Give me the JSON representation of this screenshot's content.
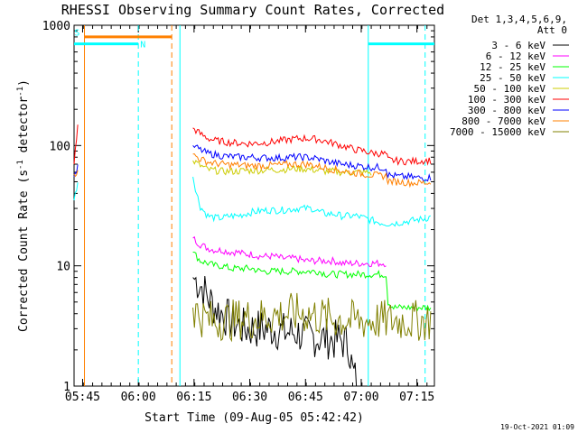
{
  "chart_data": {
    "type": "line",
    "title": "RHESSI Observing Summary Count Rates, Corrected",
    "xlabel": "Start Time (09-Aug-05 05:42:42)",
    "ylabel": "Corrected Count Rate (s⁻¹ detector⁻¹)",
    "ylabel_parts": {
      "base": "Corrected Count Rate (s",
      "exp1": "-1",
      "mid": " detector",
      "exp2": "-1",
      "close": ")"
    },
    "yscale": "log",
    "ylim": [
      1,
      1000
    ],
    "ytick_values": [
      1,
      10,
      100,
      1000
    ],
    "ytick_labels": [
      "1",
      "10",
      "100",
      "1000"
    ],
    "xlim_minutes_after_start": [
      0,
      97
    ],
    "xtick_labels": [
      "05:45",
      "06:00",
      "06:15",
      "06:30",
      "06:45",
      "07:00",
      "07:15"
    ],
    "xtick_minutes": [
      2.3,
      17.3,
      32.3,
      47.3,
      62.3,
      77.3,
      92.3
    ],
    "legend_header": [
      "Det 1,3,4,5,6,9,",
      "Att 0"
    ],
    "legend_position": "right",
    "series": [
      {
        "name": "3 - 6 keV",
        "color": "#000000",
        "points": [
          [
            32,
            8
          ],
          [
            34,
            7
          ],
          [
            36,
            5.5
          ],
          [
            38,
            4.5
          ],
          [
            40,
            4
          ],
          [
            42,
            3.5
          ],
          [
            44,
            3.2
          ],
          [
            46,
            3
          ],
          [
            48,
            3
          ],
          [
            50,
            3
          ],
          [
            52,
            3
          ],
          [
            54,
            3
          ],
          [
            56,
            2.8
          ],
          [
            58,
            2.8
          ],
          [
            60,
            2.8
          ],
          [
            62,
            2.6
          ],
          [
            64,
            2.6
          ],
          [
            66,
            2.5
          ],
          [
            68,
            2.5
          ],
          [
            70,
            2.4
          ],
          [
            72,
            2.4
          ],
          [
            74,
            2.2
          ],
          [
            75,
            1.3
          ],
          [
            76,
            1.1
          ]
        ]
      },
      {
        "name": "6 - 12 keV",
        "color": "#ff00ff",
        "points": [
          [
            32,
            17
          ],
          [
            34,
            15
          ],
          [
            36,
            14
          ],
          [
            38,
            13.5
          ],
          [
            40,
            13.5
          ],
          [
            42,
            13
          ],
          [
            44,
            13
          ],
          [
            46,
            12.5
          ],
          [
            48,
            12.5
          ],
          [
            50,
            12
          ],
          [
            52,
            12
          ],
          [
            54,
            12
          ],
          [
            56,
            11.5
          ],
          [
            58,
            11.5
          ],
          [
            60,
            11.5
          ],
          [
            62,
            11
          ],
          [
            64,
            11
          ],
          [
            66,
            11
          ],
          [
            68,
            11
          ],
          [
            70,
            11
          ],
          [
            72,
            10.5
          ],
          [
            74,
            10.5
          ],
          [
            76,
            10.5
          ],
          [
            78,
            10.5
          ],
          [
            80,
            10.5
          ],
          [
            82,
            10.5
          ],
          [
            84,
            10.5
          ]
        ]
      },
      {
        "name": "12 - 25 keV",
        "color": "#00ff00",
        "points": [
          [
            32,
            13
          ],
          [
            34,
            11
          ],
          [
            36,
            10.5
          ],
          [
            38,
            10
          ],
          [
            40,
            10
          ],
          [
            42,
            9.5
          ],
          [
            44,
            9.5
          ],
          [
            46,
            9.5
          ],
          [
            48,
            9.5
          ],
          [
            50,
            9
          ],
          [
            52,
            9
          ],
          [
            54,
            9
          ],
          [
            56,
            9
          ],
          [
            58,
            9
          ],
          [
            60,
            9
          ],
          [
            62,
            9
          ],
          [
            64,
            9
          ],
          [
            66,
            9
          ],
          [
            68,
            8.5
          ],
          [
            70,
            8.5
          ],
          [
            72,
            8.5
          ],
          [
            74,
            8.5
          ],
          [
            76,
            8.5
          ],
          [
            78,
            8.5
          ],
          [
            80,
            8.5
          ],
          [
            82,
            8.5
          ],
          [
            84,
            8.5
          ],
          [
            84.5,
            5
          ],
          [
            86,
            4.5
          ],
          [
            88,
            4.5
          ],
          [
            90,
            4.5
          ],
          [
            92,
            4.5
          ],
          [
            94,
            4.5
          ],
          [
            96,
            4.5
          ]
        ]
      },
      {
        "name": "25 - 50 keV",
        "color": "#00ffff",
        "points": [
          [
            0,
            35
          ],
          [
            1,
            50
          ],
          [
            32,
            55
          ],
          [
            33,
            40
          ],
          [
            34,
            31
          ],
          [
            36,
            26
          ],
          [
            38,
            25
          ],
          [
            40,
            25
          ],
          [
            42,
            26
          ],
          [
            44,
            26
          ],
          [
            46,
            27
          ],
          [
            48,
            28
          ],
          [
            50,
            28.5
          ],
          [
            52,
            29
          ],
          [
            54,
            29
          ],
          [
            56,
            29
          ],
          [
            58,
            29.5
          ],
          [
            60,
            30
          ],
          [
            62,
            30
          ],
          [
            64,
            30
          ],
          [
            66,
            28
          ],
          [
            68,
            27
          ],
          [
            70,
            27
          ],
          [
            72,
            26
          ],
          [
            74,
            26
          ],
          [
            76,
            26
          ],
          [
            78,
            25
          ],
          [
            80,
            24
          ],
          [
            82,
            23
          ],
          [
            84,
            22.5
          ],
          [
            86,
            22.5
          ],
          [
            88,
            23
          ],
          [
            90,
            23.5
          ],
          [
            92,
            24
          ],
          [
            94,
            24.5
          ],
          [
            96,
            25.5
          ]
        ]
      },
      {
        "name": "50 - 100 keV",
        "color": "#cccc00",
        "points": [
          [
            32,
            75
          ],
          [
            34,
            68
          ],
          [
            36,
            63
          ],
          [
            38,
            62
          ],
          [
            40,
            61
          ],
          [
            42,
            61
          ],
          [
            44,
            61
          ],
          [
            46,
            62
          ],
          [
            48,
            62
          ],
          [
            50,
            62
          ],
          [
            52,
            63
          ],
          [
            54,
            63
          ],
          [
            56,
            63
          ],
          [
            58,
            64
          ],
          [
            60,
            64
          ],
          [
            62,
            64
          ],
          [
            64,
            63
          ],
          [
            66,
            62
          ],
          [
            68,
            61
          ],
          [
            70,
            61
          ],
          [
            72,
            60
          ],
          [
            74,
            60
          ],
          [
            76,
            60
          ],
          [
            78,
            60
          ],
          [
            80,
            59
          ]
        ]
      },
      {
        "name": "100 - 300 keV",
        "color": "#ff0000",
        "points": [
          [
            0,
            70
          ],
          [
            1,
            145
          ],
          [
            32,
            140
          ],
          [
            34,
            125
          ],
          [
            36,
            115
          ],
          [
            38,
            110
          ],
          [
            40,
            108
          ],
          [
            42,
            106
          ],
          [
            44,
            105
          ],
          [
            46,
            104
          ],
          [
            48,
            104
          ],
          [
            50,
            105
          ],
          [
            52,
            106
          ],
          [
            54,
            108
          ],
          [
            56,
            110
          ],
          [
            58,
            112
          ],
          [
            60,
            114
          ],
          [
            62,
            115
          ],
          [
            64,
            114
          ],
          [
            66,
            112
          ],
          [
            68,
            108
          ],
          [
            70,
            104
          ],
          [
            72,
            100
          ],
          [
            74,
            96
          ],
          [
            76,
            92
          ],
          [
            78,
            90
          ],
          [
            80,
            87
          ],
          [
            82,
            86
          ],
          [
            84,
            85
          ],
          [
            84.5,
            76
          ],
          [
            86,
            75
          ],
          [
            88,
            74
          ],
          [
            90,
            74
          ],
          [
            92,
            74
          ],
          [
            94,
            75
          ],
          [
            96,
            75
          ]
        ]
      },
      {
        "name": "300 - 800 keV",
        "color": "#0000ff",
        "points": [
          [
            0,
            55
          ],
          [
            1,
            65
          ],
          [
            32,
            100
          ],
          [
            34,
            92
          ],
          [
            36,
            86
          ],
          [
            38,
            84
          ],
          [
            40,
            82
          ],
          [
            42,
            81
          ],
          [
            44,
            80
          ],
          [
            46,
            80
          ],
          [
            48,
            80
          ],
          [
            50,
            79
          ],
          [
            52,
            79
          ],
          [
            54,
            79
          ],
          [
            56,
            79
          ],
          [
            58,
            80
          ],
          [
            60,
            80
          ],
          [
            62,
            80
          ],
          [
            64,
            79
          ],
          [
            66,
            77
          ],
          [
            68,
            74
          ],
          [
            70,
            72
          ],
          [
            72,
            70
          ],
          [
            74,
            69
          ],
          [
            76,
            68
          ],
          [
            78,
            67
          ],
          [
            80,
            66
          ],
          [
            82,
            66
          ],
          [
            84,
            65
          ],
          [
            84.5,
            57
          ],
          [
            86,
            56
          ],
          [
            88,
            55
          ],
          [
            90,
            55
          ],
          [
            92,
            54
          ],
          [
            94,
            54
          ],
          [
            96,
            54
          ]
        ]
      },
      {
        "name": "800 - 7000 keV",
        "color": "#ff8000",
        "points": [
          [
            0,
            58
          ],
          [
            1,
            60
          ],
          [
            32,
            85
          ],
          [
            34,
            77
          ],
          [
            36,
            73
          ],
          [
            38,
            71
          ],
          [
            40,
            70
          ],
          [
            42,
            69
          ],
          [
            44,
            69
          ],
          [
            46,
            68
          ],
          [
            48,
            68
          ],
          [
            50,
            68
          ],
          [
            52,
            68
          ],
          [
            54,
            69
          ],
          [
            56,
            69
          ],
          [
            58,
            70
          ],
          [
            60,
            70
          ],
          [
            62,
            70
          ],
          [
            64,
            69
          ],
          [
            66,
            67
          ],
          [
            68,
            65
          ],
          [
            70,
            63
          ],
          [
            72,
            62
          ],
          [
            74,
            60
          ],
          [
            76,
            59
          ],
          [
            78,
            58
          ],
          [
            80,
            57
          ],
          [
            82,
            56
          ],
          [
            84,
            56
          ],
          [
            84.5,
            51
          ],
          [
            86,
            50
          ],
          [
            88,
            50
          ],
          [
            90,
            49
          ],
          [
            92,
            49
          ],
          [
            94,
            49
          ],
          [
            96,
            49
          ]
        ]
      },
      {
        "name": "7000 - 15000 keV",
        "color": "#808000",
        "points": [
          [
            32,
            4.5
          ],
          [
            34,
            3.8
          ],
          [
            36,
            3.6
          ],
          [
            38,
            3.4
          ],
          [
            40,
            3.6
          ],
          [
            42,
            3.5
          ],
          [
            44,
            3.6
          ],
          [
            46,
            3.7
          ],
          [
            48,
            3.6
          ],
          [
            50,
            3.7
          ],
          [
            52,
            3.8
          ],
          [
            54,
            3.9
          ],
          [
            56,
            3.9
          ],
          [
            58,
            4
          ],
          [
            60,
            4
          ],
          [
            62,
            4
          ],
          [
            64,
            3.9
          ],
          [
            66,
            3.8
          ],
          [
            68,
            3.7
          ],
          [
            70,
            3.6
          ],
          [
            72,
            3.6
          ],
          [
            74,
            3.5
          ],
          [
            76,
            3.5
          ],
          [
            78,
            3.5
          ],
          [
            80,
            3.5
          ],
          [
            82,
            3.5
          ],
          [
            84,
            3.5
          ],
          [
            86,
            3.5
          ],
          [
            88,
            3.5
          ],
          [
            90,
            3.5
          ],
          [
            92,
            3.5
          ],
          [
            94,
            3.5
          ],
          [
            96,
            3.5
          ]
        ]
      }
    ],
    "state_bars": [
      {
        "color": "#00ffff",
        "value": 700,
        "x": [
          0,
          17.3
        ],
        "label": ""
      },
      {
        "color": "#00ffff",
        "value": 700,
        "x": [
          79.2,
          97
        ],
        "label": ""
      },
      {
        "color": "#ff8000",
        "value": 800,
        "x": [
          2.8,
          26.3
        ],
        "label": ""
      }
    ],
    "event_lines": [
      {
        "x": 2.8,
        "color": "#ff8000",
        "dashed": false
      },
      {
        "x": 17.3,
        "color": "#00ffff",
        "dashed": true
      },
      {
        "x": 26.3,
        "color": "#ff8000",
        "dashed": true
      },
      {
        "x": 28.5,
        "color": "#00ffff",
        "dashed": false
      },
      {
        "x": 79.2,
        "color": "#00ffff",
        "dashed": false
      },
      {
        "x": 94.5,
        "color": "#00ffff",
        "dashed": true
      }
    ],
    "markers": [
      {
        "text": "N",
        "x": 17.8,
        "value": 700,
        "color": "#00ffff"
      },
      {
        "text": "S",
        "x": 0.1,
        "value": 880,
        "color": "#00ffff"
      }
    ]
  },
  "footer": {
    "timestamp": "19-Oct-2021 01:09"
  }
}
